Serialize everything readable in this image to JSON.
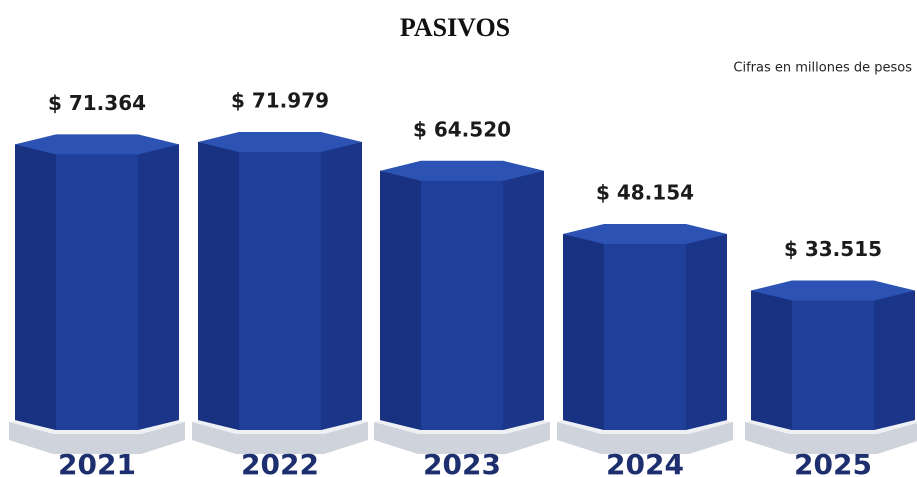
{
  "chart_data": {
    "type": "bar",
    "title": "PASIVOS",
    "subtitle": "Cifras en millones de pesos",
    "categories": [
      "2021",
      "2022",
      "2023",
      "2024",
      "2025"
    ],
    "values": [
      71364,
      71979,
      64520,
      48154,
      33515
    ],
    "value_labels": [
      "$ 71.364",
      "$ 71.979",
      "$ 64.520",
      "$ 48.154",
      "$ 33.515"
    ],
    "color": "#1f3f9a"
  }
}
